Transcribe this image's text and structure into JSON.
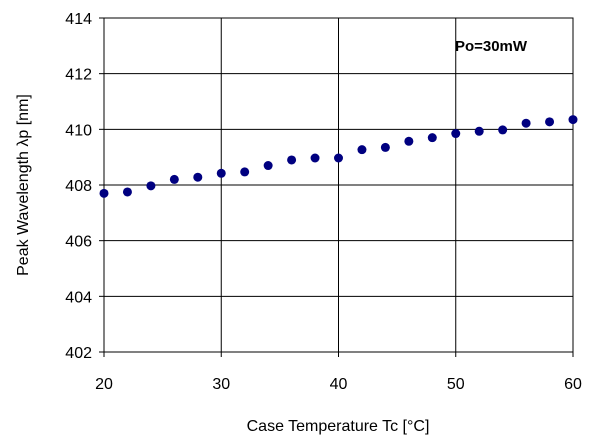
{
  "chart_data": {
    "type": "scatter",
    "title": "",
    "xlabel": "Case Temperature Tc [°C]",
    "ylabel": "Peak Wavelength λp [nm]",
    "xlim": [
      20,
      60
    ],
    "ylim": [
      402,
      414
    ],
    "xticks": [
      20,
      30,
      40,
      50,
      60
    ],
    "yticks": [
      402,
      404,
      406,
      408,
      410,
      412,
      414
    ],
    "grid": true,
    "annotation": "Po=30mW",
    "marker_color": "#000080",
    "series": [
      {
        "x": [
          20,
          22,
          24,
          26,
          28,
          30,
          32,
          34,
          36,
          38,
          40,
          42,
          44,
          46,
          48,
          50,
          52,
          54,
          56,
          58,
          60
        ],
        "y": [
          407.7,
          407.75,
          407.97,
          408.2,
          408.28,
          408.42,
          408.47,
          408.7,
          408.9,
          408.97,
          408.97,
          409.27,
          409.35,
          409.57,
          409.7,
          409.85,
          409.93,
          409.98,
          410.22,
          410.27,
          410.35
        ]
      }
    ]
  }
}
